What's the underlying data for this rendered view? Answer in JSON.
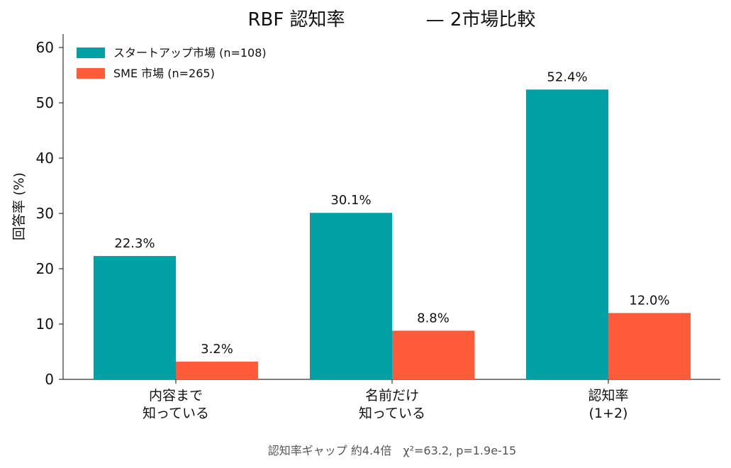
{
  "chart_data": {
    "type": "bar",
    "title_left": "RBF 認知率",
    "title_right": "— 2市場比較",
    "ylabel": "回答率 (%)",
    "ylim": [
      0,
      62
    ],
    "yticks": [
      "0",
      "10",
      "20",
      "30",
      "40",
      "50",
      "60"
    ],
    "categories": [
      [
        "内容まで",
        "知っている"
      ],
      [
        "名前だけ",
        "知っている"
      ],
      [
        "認知率",
        "(1+2)"
      ]
    ],
    "series": [
      {
        "name": "スタートアップ市場 (n=108)",
        "color": "#00A0A4",
        "values": [
          22.3,
          30.1,
          52.4
        ],
        "labels": [
          "22.3%",
          "30.1%",
          "52.4%"
        ]
      },
      {
        "name": "SME 市場 (n=265)",
        "color": "#FF5B3A",
        "values": [
          3.2,
          8.8,
          12.0
        ],
        "labels": [
          "3.2%",
          "8.8%",
          "12.0%"
        ]
      }
    ],
    "legend_position": "top-left",
    "grid": false,
    "footnote": "認知率ギャップ 約4.4倍　χ²=63.2, p=1.9e-15"
  }
}
